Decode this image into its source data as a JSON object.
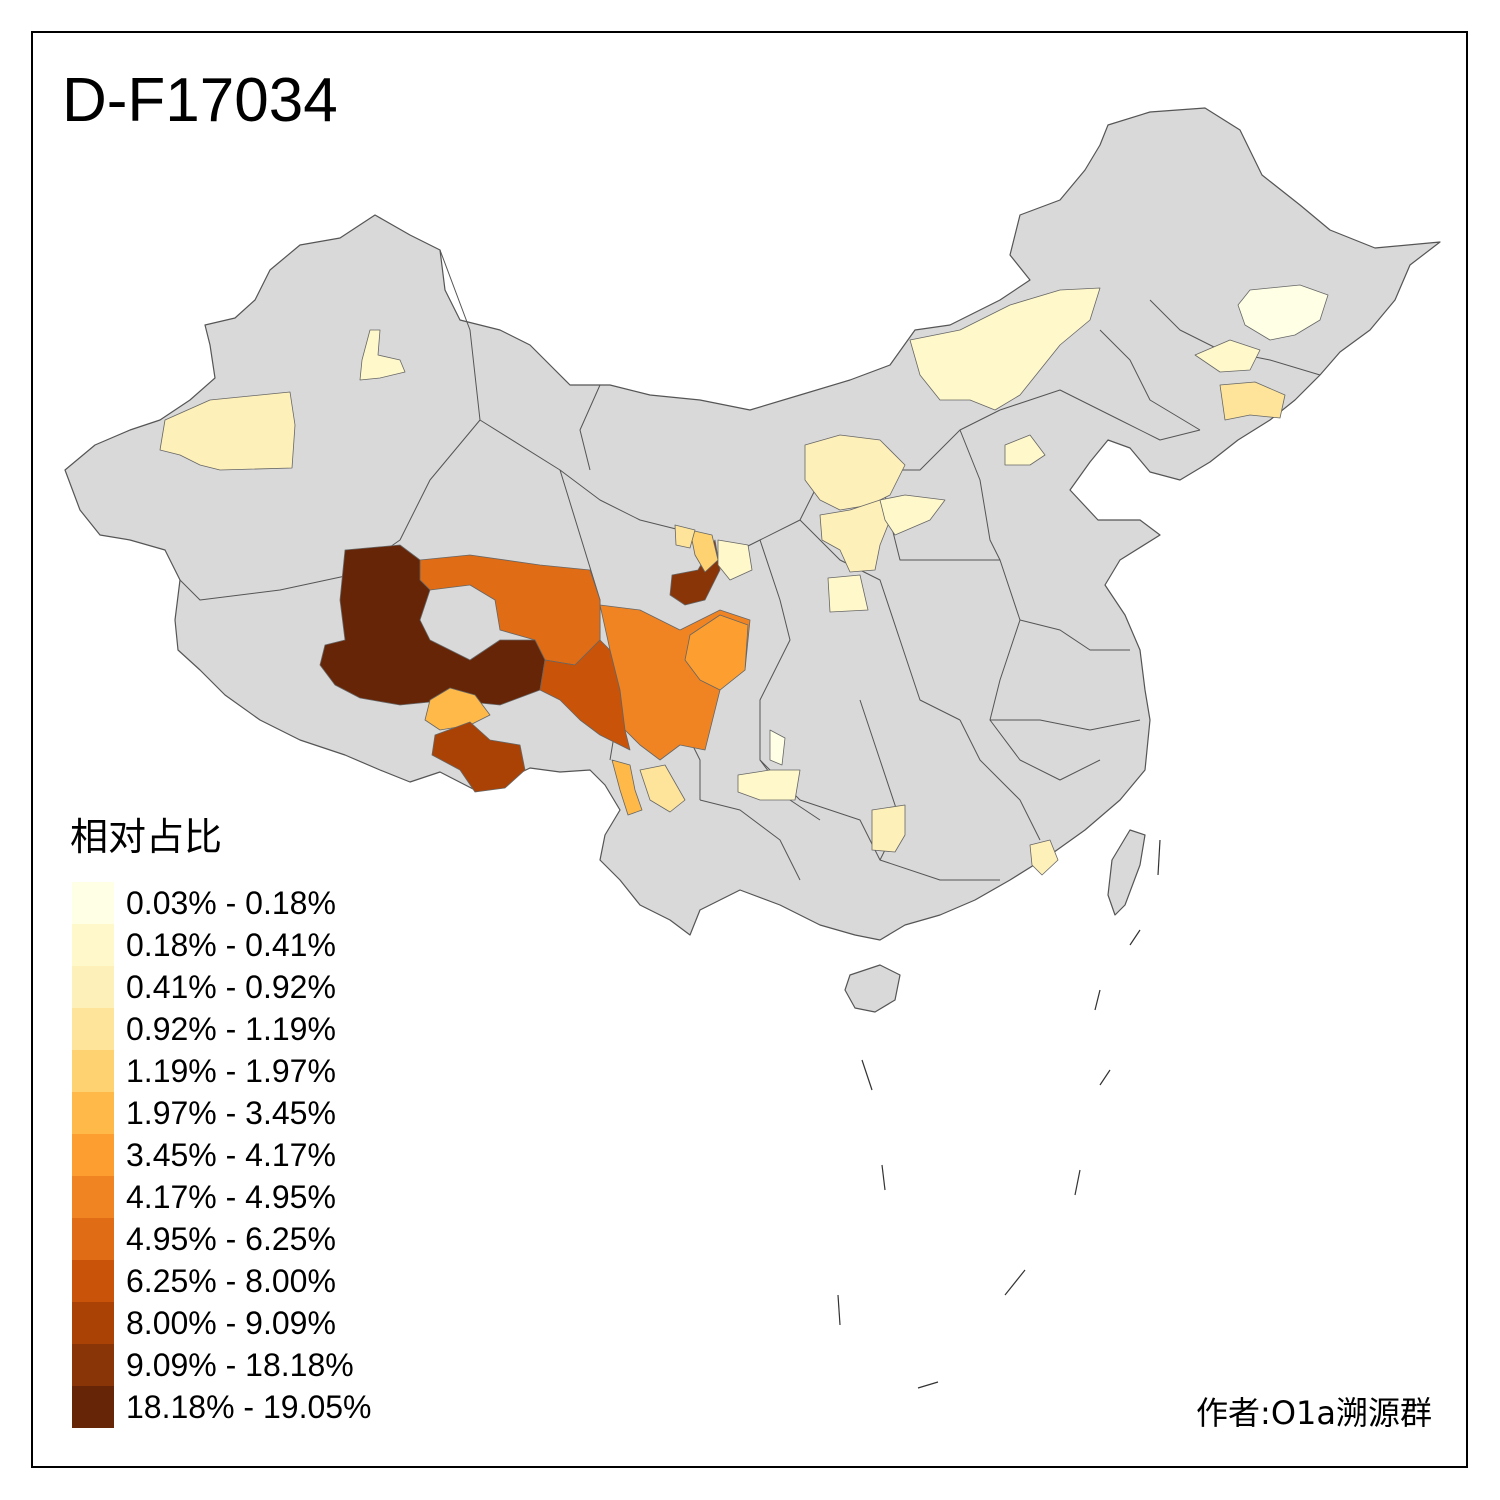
{
  "title": "D-F17034",
  "legend": {
    "title": "相对占比",
    "items": [
      {
        "label": "0.03% - 0.18%",
        "color": "#FFFFE5"
      },
      {
        "label": "0.18% - 0.41%",
        "color": "#FFF8CB"
      },
      {
        "label": "0.41% - 0.92%",
        "color": "#FEF0B9"
      },
      {
        "label": "0.92% - 1.19%",
        "color": "#FEE49A"
      },
      {
        "label": "1.19% - 1.97%",
        "color": "#FED270"
      },
      {
        "label": "1.97% - 3.45%",
        "color": "#FEB949"
      },
      {
        "label": "3.45% - 4.17%",
        "color": "#FD9F30"
      },
      {
        "label": "4.17% - 4.95%",
        "color": "#F08423"
      },
      {
        "label": "4.95% - 6.25%",
        "color": "#E06C15"
      },
      {
        "label": "6.25% - 8.00%",
        "color": "#C95308"
      },
      {
        "label": "8.00% - 9.09%",
        "color": "#AB4205"
      },
      {
        "label": "9.09% - 18.18%",
        "color": "#893508"
      },
      {
        "label": "18.18% - 19.05%",
        "color": "#662506"
      }
    ]
  },
  "credit": "作者:O1a溯源群",
  "colors": {
    "base_region": "#D9D9D9",
    "border": "#555555",
    "frame": "#000000"
  }
}
